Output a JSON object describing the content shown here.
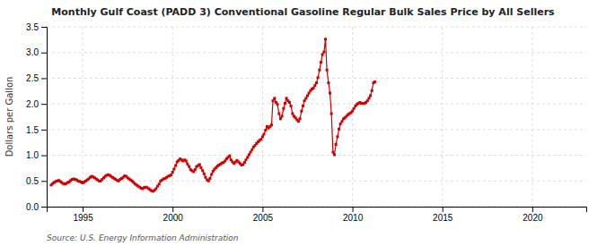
{
  "chart_data": {
    "type": "line",
    "title": "Monthly Gulf Coast (PADD 3) Conventional Gasoline Regular Bulk Sales Price by All Sellers",
    "ylabel": "Dollars per Gallon",
    "source": "Source: U.S. Energy Information Administration",
    "color": "#cc0000",
    "marker": "square",
    "line_style": "solid",
    "grid": true,
    "xlim": [
      1993.0,
      2023.0
    ],
    "ylim": [
      0.0,
      3.5
    ],
    "xticks": [
      1995,
      2000,
      2005,
      2010,
      2015,
      2020
    ],
    "yticks": [
      {
        "value": 0.0,
        "label": "0.0"
      },
      0.5,
      {
        "value": 1.0,
        "label": "1.0"
      },
      1.5,
      {
        "value": 2.0,
        "label": "2.0"
      },
      2.5,
      {
        "value": 3.0,
        "label": "3.0"
      },
      3.5
    ],
    "x": [
      1993.25,
      1993.33,
      1993.42,
      1993.5,
      1993.58,
      1993.67,
      1993.75,
      1993.83,
      1993.92,
      1994.0,
      1994.08,
      1994.17,
      1994.25,
      1994.33,
      1994.42,
      1994.5,
      1994.58,
      1994.67,
      1994.75,
      1994.83,
      1994.92,
      1995.0,
      1995.08,
      1995.17,
      1995.25,
      1995.33,
      1995.42,
      1995.5,
      1995.58,
      1995.67,
      1995.75,
      1995.83,
      1995.92,
      1996.0,
      1996.08,
      1996.17,
      1996.25,
      1996.33,
      1996.42,
      1996.5,
      1996.58,
      1996.67,
      1996.75,
      1996.83,
      1996.92,
      1997.0,
      1997.08,
      1997.17,
      1997.25,
      1997.33,
      1997.42,
      1997.5,
      1997.58,
      1997.67,
      1997.75,
      1997.83,
      1997.92,
      1998.0,
      1998.08,
      1998.17,
      1998.25,
      1998.33,
      1998.42,
      1998.5,
      1998.58,
      1998.67,
      1998.75,
      1998.83,
      1998.92,
      1999.0,
      1999.08,
      1999.17,
      1999.25,
      1999.33,
      1999.42,
      1999.5,
      1999.58,
      1999.67,
      1999.75,
      1999.83,
      1999.92,
      2000.0,
      2000.08,
      2000.17,
      2000.25,
      2000.33,
      2000.42,
      2000.5,
      2000.58,
      2000.67,
      2000.75,
      2000.83,
      2000.92,
      2001.0,
      2001.08,
      2001.17,
      2001.25,
      2001.33,
      2001.42,
      2001.5,
      2001.58,
      2001.67,
      2001.75,
      2001.83,
      2001.92,
      2002.0,
      2002.08,
      2002.17,
      2002.25,
      2002.33,
      2002.42,
      2002.5,
      2002.58,
      2002.67,
      2002.75,
      2002.83,
      2002.92,
      2003.0,
      2003.08,
      2003.17,
      2003.25,
      2003.33,
      2003.42,
      2003.5,
      2003.58,
      2003.67,
      2003.75,
      2003.83,
      2003.92,
      2004.0,
      2004.08,
      2004.17,
      2004.25,
      2004.33,
      2004.42,
      2004.5,
      2004.58,
      2004.67,
      2004.75,
      2004.83,
      2004.92,
      2005.0,
      2005.08,
      2005.17,
      2005.25,
      2005.33,
      2005.42,
      2005.5,
      2005.58,
      2005.67,
      2005.75,
      2005.83,
      2005.92,
      2006.0,
      2006.08,
      2006.17,
      2006.25,
      2006.33,
      2006.42,
      2006.5,
      2006.58,
      2006.67,
      2006.75,
      2006.83,
      2006.92,
      2007.0,
      2007.08,
      2007.17,
      2007.25,
      2007.33,
      2007.42,
      2007.5,
      2007.58,
      2007.67,
      2007.75,
      2007.83,
      2007.92,
      2008.0,
      2008.08,
      2008.17,
      2008.25,
      2008.33,
      2008.42,
      2008.5,
      2008.58,
      2008.67,
      2008.75,
      2008.83,
      2008.92,
      2009.0,
      2009.08,
      2009.17,
      2009.25,
      2009.33,
      2009.42,
      2009.5,
      2009.58,
      2009.67,
      2009.75,
      2009.83,
      2009.92,
      2010.0,
      2010.08,
      2010.17,
      2010.25,
      2010.33,
      2010.42,
      2010.5,
      2010.58,
      2010.67,
      2010.75,
      2010.83,
      2010.92,
      2011.0,
      2011.08,
      2011.17,
      2011.25
    ],
    "values": [
      0.42,
      0.45,
      0.47,
      0.49,
      0.5,
      0.51,
      0.49,
      0.47,
      0.45,
      0.44,
      0.45,
      0.47,
      0.48,
      0.51,
      0.53,
      0.54,
      0.53,
      0.52,
      0.5,
      0.49,
      0.48,
      0.46,
      0.48,
      0.5,
      0.52,
      0.54,
      0.57,
      0.59,
      0.58,
      0.56,
      0.54,
      0.52,
      0.5,
      0.5,
      0.53,
      0.56,
      0.59,
      0.61,
      0.62,
      0.61,
      0.59,
      0.57,
      0.55,
      0.53,
      0.51,
      0.5,
      0.53,
      0.55,
      0.57,
      0.6,
      0.59,
      0.56,
      0.54,
      0.52,
      0.5,
      0.47,
      0.44,
      0.42,
      0.4,
      0.38,
      0.36,
      0.35,
      0.37,
      0.38,
      0.37,
      0.35,
      0.33,
      0.31,
      0.3,
      0.32,
      0.35,
      0.4,
      0.44,
      0.5,
      0.52,
      0.54,
      0.55,
      0.57,
      0.59,
      0.6,
      0.62,
      0.67,
      0.73,
      0.8,
      0.87,
      0.9,
      0.93,
      0.91,
      0.89,
      0.91,
      0.89,
      0.83,
      0.78,
      0.72,
      0.7,
      0.68,
      0.72,
      0.78,
      0.8,
      0.82,
      0.76,
      0.7,
      0.64,
      0.57,
      0.52,
      0.5,
      0.55,
      0.63,
      0.69,
      0.73,
      0.76,
      0.79,
      0.81,
      0.83,
      0.85,
      0.86,
      0.89,
      0.93,
      0.96,
      0.99,
      0.91,
      0.87,
      0.84,
      0.87,
      0.9,
      0.87,
      0.84,
      0.81,
      0.82,
      0.86,
      0.91,
      0.96,
      1.01,
      1.06,
      1.11,
      1.16,
      1.19,
      1.23,
      1.26,
      1.29,
      1.31,
      1.36,
      1.41,
      1.49,
      1.56,
      1.53,
      1.56,
      1.59,
      2.06,
      2.11,
      2.03,
      1.99,
      1.81,
      1.71,
      1.76,
      1.91,
      2.01,
      2.11,
      2.06,
      2.03,
      1.96,
      1.81,
      1.76,
      1.73,
      1.69,
      1.66,
      1.71,
      1.86,
      1.96,
      2.06,
      2.11,
      2.16,
      2.21,
      2.26,
      2.29,
      2.31,
      2.36,
      2.41,
      2.51,
      2.66,
      2.81,
      2.96,
      3.01,
      3.26,
      2.66,
      2.41,
      2.21,
      1.81,
      1.06,
      1.01,
      1.21,
      1.36,
      1.51,
      1.61,
      1.66,
      1.71,
      1.73,
      1.76,
      1.79,
      1.81,
      1.83,
      1.86,
      1.91,
      1.96,
      1.99,
      2.01,
      2.03,
      2.01,
      2.01,
      2.01,
      2.03,
      2.06,
      2.11,
      2.16,
      2.26,
      2.41,
      2.43
    ]
  }
}
